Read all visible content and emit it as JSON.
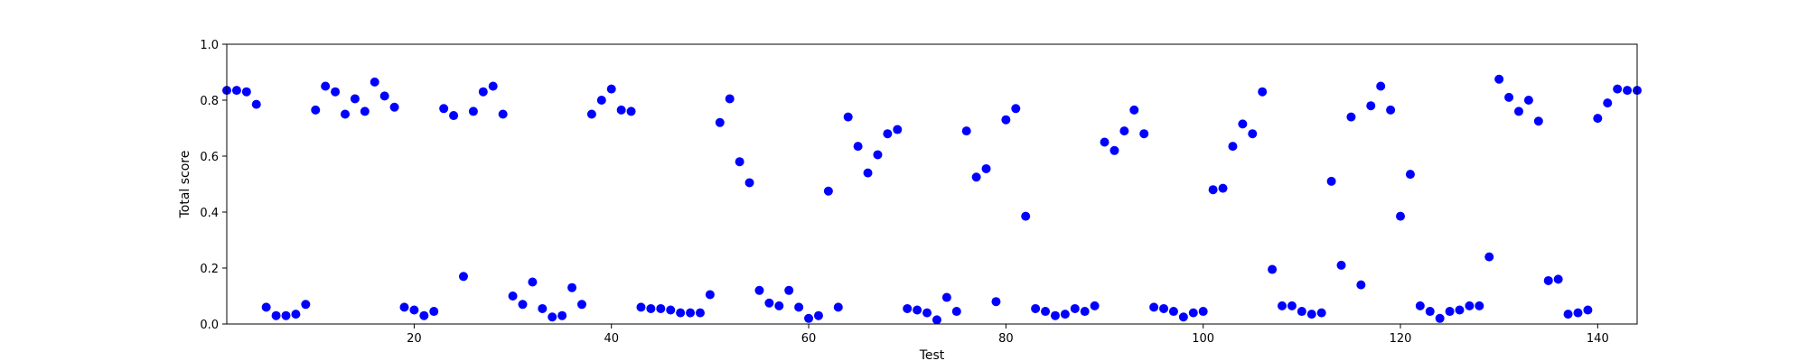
{
  "chart_data": {
    "type": "scatter",
    "xlabel": "Test",
    "ylabel": "Total score",
    "xlim": [
      1,
      144
    ],
    "ylim": [
      0.0,
      1.0
    ],
    "grid": false,
    "marker_color": "#0000ff",
    "xticks": [
      20,
      40,
      60,
      80,
      100,
      120,
      140
    ],
    "xtick_labels": [
      "20",
      "40",
      "60",
      "80",
      "100",
      "120",
      "140"
    ],
    "yticks": [
      0.0,
      0.2,
      0.4,
      0.6,
      0.8,
      1.0
    ],
    "ytick_labels": [
      "0.0",
      "0.2",
      "0.4",
      "0.6",
      "0.8",
      "1.0"
    ],
    "series": [
      {
        "x": [
          1,
          2,
          3,
          4,
          5,
          6,
          7,
          8,
          9,
          10,
          11,
          12,
          13,
          14,
          15,
          16,
          17,
          18,
          19,
          20,
          21,
          22,
          23,
          24,
          25,
          26,
          27,
          28,
          29,
          30,
          31,
          32,
          33,
          34,
          35,
          36,
          37,
          38,
          39,
          40,
          41,
          42,
          43,
          44,
          45,
          46,
          47,
          48,
          49,
          50,
          51,
          52,
          53,
          54,
          55,
          56,
          57,
          58,
          59,
          60,
          61,
          62,
          63,
          64,
          65,
          66,
          67,
          68,
          69,
          70,
          71,
          72,
          73,
          74,
          75,
          76,
          77,
          78,
          79,
          80,
          81,
          82,
          83,
          84,
          85,
          86,
          87,
          88,
          89,
          90,
          91,
          92,
          93,
          94,
          95,
          96,
          97,
          98,
          99,
          100,
          101,
          102,
          103,
          104,
          105,
          106,
          107,
          108,
          109,
          110,
          111,
          112,
          113,
          114,
          115,
          116,
          117,
          118,
          119,
          120,
          121,
          122,
          123,
          124,
          125,
          126,
          127,
          128,
          129,
          130,
          131,
          132,
          133,
          134,
          135,
          136,
          137,
          138,
          139,
          140,
          141,
          142,
          143,
          144
        ],
        "y": [
          0.835,
          0.835,
          0.83,
          0.785,
          0.06,
          0.03,
          0.03,
          0.035,
          0.07,
          0.765,
          0.85,
          0.83,
          0.75,
          0.805,
          0.76,
          0.865,
          0.815,
          0.775,
          0.06,
          0.05,
          0.03,
          0.045,
          0.77,
          0.745,
          0.17,
          0.76,
          0.83,
          0.85,
          0.75,
          0.1,
          0.07,
          0.15,
          0.055,
          0.025,
          0.03,
          0.13,
          0.07,
          0.75,
          0.8,
          0.84,
          0.765,
          0.76,
          0.06,
          0.055,
          0.055,
          0.05,
          0.04,
          0.04,
          0.04,
          0.105,
          0.72,
          0.805,
          0.58,
          0.505,
          0.12,
          0.075,
          0.065,
          0.12,
          0.06,
          0.02,
          0.03,
          0.475,
          0.06,
          0.74,
          0.635,
          0.54,
          0.605,
          0.68,
          0.695,
          0.055,
          0.05,
          0.04,
          0.015,
          0.095,
          0.045,
          0.69,
          0.525,
          0.555,
          0.08,
          0.73,
          0.77,
          0.385,
          0.055,
          0.045,
          0.03,
          0.035,
          0.055,
          0.045,
          0.065,
          0.65,
          0.62,
          0.69,
          0.765,
          0.68,
          0.06,
          0.055,
          0.045,
          0.025,
          0.04,
          0.045,
          0.48,
          0.485,
          0.635,
          0.715,
          0.68,
          0.83,
          0.195,
          0.065,
          0.065,
          0.045,
          0.035,
          0.04,
          0.51,
          0.21,
          0.74,
          0.14,
          0.78,
          0.85,
          0.765,
          0.385,
          0.535,
          0.065,
          0.045,
          0.02,
          0.045,
          0.05,
          0.065,
          0.065,
          0.24,
          0.875,
          0.81,
          0.76,
          0.8,
          0.725,
          0.155,
          0.16,
          0.035,
          0.04,
          0.05,
          0.735,
          0.79,
          0.84,
          0.835,
          0.835
        ]
      }
    ]
  }
}
